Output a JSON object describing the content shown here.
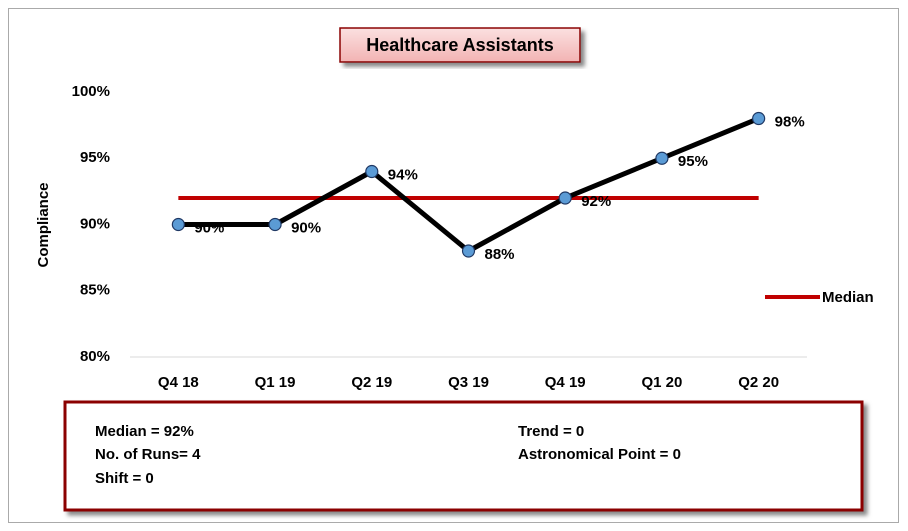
{
  "chart_data": {
    "type": "line",
    "title": "Healthcare Assistants",
    "y_label": "Compliance",
    "categories": [
      "Q4 18",
      "Q1 19",
      "Q2 19",
      "Q3 19",
      "Q4 19",
      "Q1 20",
      "Q2 20"
    ],
    "series": [
      {
        "color": "#000000",
        "marker_color": "#5b9bd5",
        "values": [
          90,
          90,
          94,
          88,
          92,
          95,
          98
        ],
        "value_labels": [
          "90%",
          "90%",
          "94%",
          "88%",
          "92%",
          "95%",
          "98%"
        ]
      },
      {
        "name": "Median",
        "color": "#c00000",
        "values": [
          92,
          92,
          92,
          92,
          92,
          92,
          92
        ]
      }
    ],
    "ylim": [
      80,
      100
    ],
    "yticks": [
      {
        "value": 80,
        "label": "80%"
      },
      {
        "value": 85,
        "label": "85%"
      },
      {
        "value": 90,
        "label": "90%"
      },
      {
        "value": 95,
        "label": "95%"
      },
      {
        "value": 100,
        "label": "100%"
      }
    ],
    "grid": false,
    "legend": "right",
    "annotations": [
      "Median = 92%",
      "No. of Runs= 4",
      "Shift = 0",
      "Trend = 0",
      "Astronomical Point = 0"
    ]
  }
}
